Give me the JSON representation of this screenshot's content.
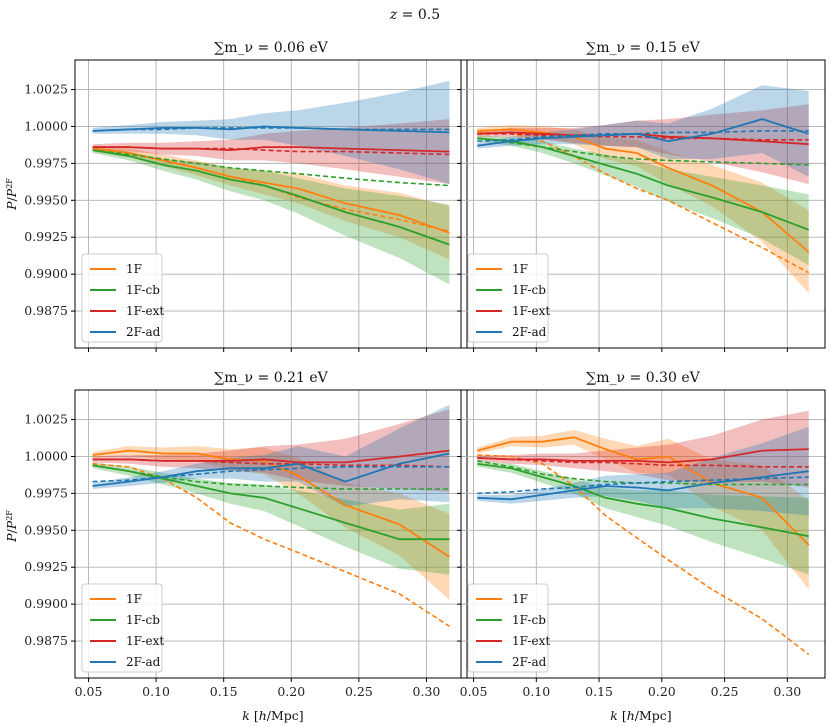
{
  "figure": {
    "suptitle": "z = 0.5",
    "xlabel": "k [h/Mpc]",
    "ylabel": "P/P^2F",
    "colors": {
      "1F": "#ff7f0e",
      "1F-cb": "#2ca02c",
      "1F-ext": "#d62728",
      "2F-ad": "#1f77b4"
    }
  },
  "chart_data": [
    {
      "type": "line",
      "title": "∑m_ν = 0.06 eV",
      "xlim": [
        0.04,
        0.33
      ],
      "ylim": [
        0.985,
        1.0045
      ],
      "xticks": [
        0.05,
        0.1,
        0.15,
        0.2,
        0.25,
        0.3
      ],
      "yticks": [
        0.9875,
        0.99,
        0.9925,
        0.995,
        0.9975,
        1.0,
        1.0025
      ],
      "legend": [
        "1F",
        "1F-cb",
        "1F-ext",
        "2F-ad"
      ],
      "x": [
        0.053,
        0.08,
        0.105,
        0.13,
        0.155,
        0.18,
        0.205,
        0.24,
        0.28,
        0.317
      ],
      "series": [
        {
          "name": "1F",
          "solid": [
            0.9985,
            0.9982,
            0.9977,
            0.9972,
            0.9966,
            0.9962,
            0.9958,
            0.9948,
            0.994,
            0.9928
          ],
          "dashed": [
            0.9985,
            0.9982,
            0.9977,
            0.9972,
            0.9966,
            0.996,
            0.9952,
            0.9944,
            0.9937,
            0.9929
          ],
          "band": [
            0.0002,
            0.0003,
            0.0004,
            0.0005,
            0.0006,
            0.0008,
            0.001,
            0.0012,
            0.0015,
            0.0018
          ]
        },
        {
          "name": "1F-cb",
          "solid": [
            0.9984,
            0.998,
            0.9974,
            0.997,
            0.9964,
            0.996,
            0.9953,
            0.9942,
            0.9932,
            0.992
          ],
          "dashed": [
            0.9984,
            0.9981,
            0.9978,
            0.9975,
            0.9972,
            0.997,
            0.9968,
            0.9965,
            0.9962,
            0.996
          ],
          "band": [
            0.0002,
            0.0003,
            0.0004,
            0.0006,
            0.0008,
            0.001,
            0.0012,
            0.0016,
            0.0021,
            0.0027
          ]
        },
        {
          "name": "1F-ext",
          "solid": [
            0.9986,
            0.9986,
            0.9985,
            0.9985,
            0.9984,
            0.9986,
            0.9986,
            0.9985,
            0.9984,
            0.9983
          ],
          "dashed": [
            0.9986,
            0.9986,
            0.9985,
            0.9985,
            0.9985,
            0.9984,
            0.9983,
            0.9983,
            0.9982,
            0.9981
          ],
          "band": [
            0.0002,
            0.0003,
            0.0004,
            0.0005,
            0.0007,
            0.0009,
            0.0011,
            0.0014,
            0.0018,
            0.0022
          ]
        },
        {
          "name": "2F-ad",
          "solid": [
            0.9997,
            0.9998,
            0.9999,
            0.9999,
            0.9998,
            1.0,
            0.9999,
            0.9998,
            0.9997,
            0.9996
          ],
          "dashed": [
            0.9997,
            0.9998,
            0.9998,
            0.9999,
            0.9999,
            0.9999,
            0.9999,
            0.9998,
            0.9998,
            0.9998
          ],
          "band": [
            0.0002,
            0.0003,
            0.0004,
            0.0005,
            0.0007,
            0.0009,
            0.0012,
            0.0018,
            0.0026,
            0.0035
          ]
        }
      ]
    },
    {
      "type": "line",
      "title": "∑m_ν = 0.15 eV",
      "xlim": [
        0.04,
        0.33
      ],
      "ylim": [
        0.985,
        1.0045
      ],
      "xticks": [
        0.05,
        0.1,
        0.15,
        0.2,
        0.25,
        0.3
      ],
      "yticks": [
        0.9875,
        0.99,
        0.9925,
        0.995,
        0.9975,
        1.0,
        1.0025
      ],
      "legend": [
        "1F",
        "1F-cb",
        "1F-ext",
        "2F-ad"
      ],
      "x": [
        0.053,
        0.08,
        0.105,
        0.13,
        0.155,
        0.18,
        0.205,
        0.24,
        0.28,
        0.317
      ],
      "series": [
        {
          "name": "1F",
          "solid": [
            0.9997,
            0.9998,
            0.9996,
            0.9993,
            0.9985,
            0.9982,
            0.9972,
            0.996,
            0.9942,
            0.9915
          ],
          "dashed": [
            0.9996,
            0.9995,
            0.999,
            0.998,
            0.9968,
            0.9958,
            0.995,
            0.9935,
            0.9918,
            0.9901
          ],
          "band": [
            0.0002,
            0.0003,
            0.0004,
            0.0005,
            0.0007,
            0.0009,
            0.0011,
            0.0014,
            0.002,
            0.0028
          ]
        },
        {
          "name": "1F-cb",
          "solid": [
            0.9992,
            0.999,
            0.9986,
            0.998,
            0.9974,
            0.9968,
            0.996,
            0.9952,
            0.9942,
            0.993
          ],
          "dashed": [
            0.9992,
            0.9989,
            0.9986,
            0.9983,
            0.998,
            0.9978,
            0.9977,
            0.9976,
            0.9975,
            0.9974
          ],
          "band": [
            0.0002,
            0.0003,
            0.0004,
            0.0005,
            0.0007,
            0.0009,
            0.0011,
            0.0014,
            0.0018,
            0.0024
          ]
        },
        {
          "name": "1F-ext",
          "solid": [
            0.9995,
            0.9996,
            0.9995,
            0.9994,
            0.9994,
            0.9995,
            0.9993,
            0.9992,
            0.999,
            0.9988
          ],
          "dashed": [
            0.9995,
            0.9995,
            0.9994,
            0.9994,
            0.9993,
            0.9993,
            0.9992,
            0.9992,
            0.9991,
            0.9991
          ],
          "band": [
            0.0002,
            0.0003,
            0.0004,
            0.0005,
            0.0007,
            0.0009,
            0.0012,
            0.0016,
            0.0021,
            0.0027
          ]
        },
        {
          "name": "2F-ad",
          "solid": [
            0.9987,
            0.999,
            0.9992,
            0.9993,
            0.9994,
            0.9995,
            0.999,
            0.9995,
            1.0005,
            0.9995
          ],
          "dashed": [
            0.999,
            0.9991,
            0.9993,
            0.9994,
            0.9995,
            0.9995,
            0.9996,
            0.9996,
            0.9997,
            0.9997
          ],
          "band": [
            0.0002,
            0.0003,
            0.0004,
            0.0005,
            0.0007,
            0.0009,
            0.0012,
            0.0017,
            0.0023,
            0.0029
          ]
        }
      ]
    },
    {
      "type": "line",
      "title": "∑m_ν = 0.21 eV",
      "xlim": [
        0.04,
        0.33
      ],
      "ylim": [
        0.985,
        1.0045
      ],
      "xticks": [
        0.05,
        0.1,
        0.15,
        0.2,
        0.25,
        0.3
      ],
      "yticks": [
        0.9875,
        0.99,
        0.9925,
        0.995,
        0.9975,
        1.0,
        1.0025
      ],
      "legend": [
        "1F",
        "1F-cb",
        "1F-ext",
        "2F-ad"
      ],
      "x": [
        0.053,
        0.08,
        0.105,
        0.13,
        0.155,
        0.18,
        0.205,
        0.24,
        0.28,
        0.317
      ],
      "series": [
        {
          "name": "1F",
          "solid": [
            1.0001,
            1.0004,
            1.0002,
            1.0002,
            0.9998,
            0.9997,
            0.9987,
            0.9967,
            0.9954,
            0.9932
          ],
          "dashed": [
            0.9995,
            0.9993,
            0.9985,
            0.9972,
            0.9955,
            0.9944,
            0.9935,
            0.9922,
            0.9907,
            0.9885
          ],
          "band": [
            0.0002,
            0.0003,
            0.0004,
            0.0005,
            0.0007,
            0.0009,
            0.0012,
            0.0015,
            0.0021,
            0.0029
          ]
        },
        {
          "name": "1F-cb",
          "solid": [
            0.9994,
            0.999,
            0.9985,
            0.998,
            0.9975,
            0.9972,
            0.9965,
            0.9955,
            0.9944,
            0.9944
          ],
          "dashed": [
            0.9994,
            0.999,
            0.9986,
            0.9983,
            0.9981,
            0.998,
            0.9979,
            0.9978,
            0.9978,
            0.9978
          ],
          "band": [
            0.0002,
            0.0003,
            0.0004,
            0.0005,
            0.0007,
            0.0009,
            0.0012,
            0.0016,
            0.002,
            0.0024
          ]
        },
        {
          "name": "1F-ext",
          "solid": [
            0.9998,
            0.9998,
            0.9997,
            0.9997,
            0.9997,
            0.9998,
            0.9996,
            0.9996,
            1.0,
            1.0004
          ],
          "dashed": [
            0.9998,
            0.9998,
            0.9997,
            0.9997,
            0.9996,
            0.9995,
            0.9995,
            0.9994,
            0.9994,
            0.9993
          ],
          "band": [
            0.0002,
            0.0003,
            0.0004,
            0.0005,
            0.0007,
            0.0009,
            0.0012,
            0.0016,
            0.0022,
            0.0028
          ]
        },
        {
          "name": "2F-ad",
          "solid": [
            0.998,
            0.9983,
            0.9986,
            0.999,
            0.9992,
            0.9992,
            0.9995,
            0.9983,
            0.9995,
            1.0002
          ],
          "dashed": [
            0.9983,
            0.9984,
            0.9986,
            0.9988,
            0.999,
            0.9991,
            0.9992,
            0.9993,
            0.9993,
            0.9993
          ],
          "band": [
            0.0002,
            0.0003,
            0.0004,
            0.0005,
            0.0007,
            0.0009,
            0.0012,
            0.0017,
            0.0024,
            0.0033
          ]
        }
      ]
    },
    {
      "type": "line",
      "title": "∑m_ν = 0.30 eV",
      "xlim": [
        0.04,
        0.33
      ],
      "ylim": [
        0.985,
        1.0045
      ],
      "xticks": [
        0.05,
        0.1,
        0.15,
        0.2,
        0.25,
        0.3
      ],
      "yticks": [
        0.9875,
        0.99,
        0.9925,
        0.995,
        0.9975,
        1.0,
        1.0025
      ],
      "legend": [
        "1F",
        "1F-cb",
        "1F-ext",
        "2F-ad"
      ],
      "x": [
        0.053,
        0.08,
        0.105,
        0.13,
        0.155,
        0.18,
        0.205,
        0.24,
        0.28,
        0.317
      ],
      "series": [
        {
          "name": "1F",
          "solid": [
            1.0004,
            1.001,
            1.001,
            1.0013,
            1.0005,
            0.9998,
            1.0,
            0.9982,
            0.9972,
            0.994
          ],
          "dashed": [
            1.0001,
            1.0,
            0.9995,
            0.998,
            0.996,
            0.9945,
            0.993,
            0.991,
            0.989,
            0.9866
          ],
          "band": [
            0.0002,
            0.0003,
            0.0004,
            0.0005,
            0.0007,
            0.0009,
            0.0012,
            0.0016,
            0.0022,
            0.003
          ]
        },
        {
          "name": "1F-cb",
          "solid": [
            0.9995,
            0.9992,
            0.9986,
            0.998,
            0.9972,
            0.9968,
            0.9965,
            0.9958,
            0.9952,
            0.9946
          ],
          "dashed": [
            0.9997,
            0.9993,
            0.9988,
            0.9985,
            0.9983,
            0.9982,
            0.9982,
            0.9981,
            0.9981,
            0.9981
          ],
          "band": [
            0.0002,
            0.0003,
            0.0004,
            0.0005,
            0.0007,
            0.0009,
            0.0012,
            0.0016,
            0.0021,
            0.0026
          ]
        },
        {
          "name": "1F-ext",
          "solid": [
            0.9999,
            0.9998,
            0.9998,
            0.9997,
            0.9997,
            0.9997,
            0.9996,
            0.9998,
            1.0004,
            1.0005
          ],
          "dashed": [
            0.9999,
            0.9998,
            0.9997,
            0.9996,
            0.9996,
            0.9995,
            0.9994,
            0.9994,
            0.9993,
            0.9993
          ],
          "band": [
            0.0002,
            0.0003,
            0.0004,
            0.0005,
            0.0007,
            0.0009,
            0.0012,
            0.0016,
            0.0021,
            0.0026
          ]
        },
        {
          "name": "2F-ad",
          "solid": [
            0.9972,
            0.9971,
            0.9974,
            0.9977,
            0.998,
            0.9979,
            0.9977,
            0.9982,
            0.9986,
            0.999
          ],
          "dashed": [
            0.9975,
            0.9976,
            0.9978,
            0.9979,
            0.9981,
            0.9982,
            0.9983,
            0.9984,
            0.9985,
            0.9986
          ],
          "band": [
            0.0002,
            0.0003,
            0.0004,
            0.0005,
            0.0007,
            0.0009,
            0.0012,
            0.0017,
            0.0023,
            0.003
          ]
        }
      ]
    }
  ]
}
